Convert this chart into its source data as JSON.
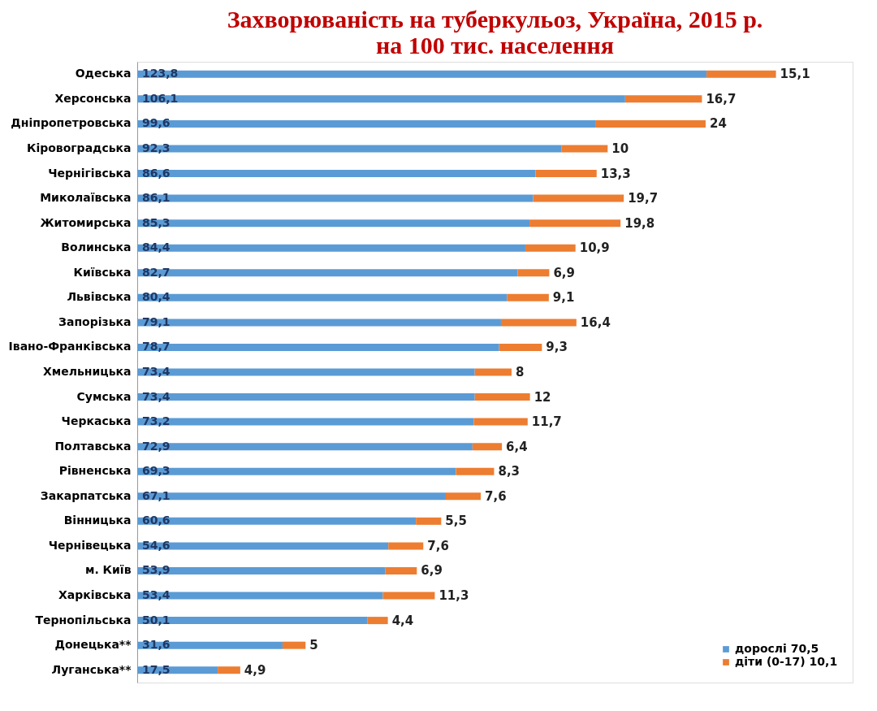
{
  "chart_data": {
    "type": "bar",
    "orientation": "horizontal",
    "stacked": true,
    "title": [
      "Захворюваність на туберкульоз, Україна, 2015 р.",
      "на 100 тис. населення"
    ],
    "categories": [
      "Одеська",
      "Херсонська",
      "Дніпропетровська",
      "Кіровоградська",
      "Чернігівська",
      "Миколаївська",
      "Житомирська",
      "Волинська",
      "Київська",
      "Львівська",
      "Запорізька",
      "Івано-Франківська",
      "Хмельницька",
      "Сумська",
      "Черкаська",
      "Полтавська",
      "Рівненська",
      "Закарпатська",
      "Вінницька",
      "Чернівецька",
      "м. Київ",
      "Харківська",
      "Тернопільська",
      "Донецька**",
      "Луганська**"
    ],
    "series": [
      {
        "name": "дорослі 70,5",
        "color": "#5b9bd5",
        "values": [
          123.8,
          106.1,
          99.6,
          92.3,
          86.6,
          86.1,
          85.3,
          84.4,
          82.7,
          80.4,
          79.1,
          78.7,
          73.4,
          73.4,
          73.2,
          72.9,
          69.3,
          67.1,
          60.6,
          54.6,
          53.9,
          53.4,
          50.1,
          31.6,
          17.5
        ],
        "value_labels": [
          "123,8",
          "106,1",
          "99,6",
          "92,3",
          "86,6",
          "86,1",
          "85,3",
          "84,4",
          "82,7",
          "80,4",
          "79,1",
          "78,7",
          "73,4",
          "73,4",
          "73,2",
          "72,9",
          "69,3",
          "67,1",
          "60,6",
          "54,6",
          "53,9",
          "53,4",
          "50,1",
          "31,6",
          "17,5"
        ]
      },
      {
        "name": "діти (0-17) 10,1",
        "color": "#ed7d31",
        "values": [
          15.1,
          16.7,
          24,
          10,
          13.3,
          19.7,
          19.8,
          10.9,
          6.9,
          9.1,
          16.4,
          9.3,
          8,
          12,
          11.7,
          6.4,
          8.3,
          7.6,
          5.5,
          7.6,
          6.9,
          11.3,
          4.4,
          5,
          4.9
        ],
        "value_labels": [
          "15,1",
          "16,7",
          "24",
          "10",
          "13,3",
          "19,7",
          "19,8",
          "10,9",
          "6,9",
          "9,1",
          "16,4",
          "9,3",
          "8",
          "12",
          "11,7",
          "6,4",
          "8,3",
          "7,6",
          "5,5",
          "7,6",
          "6,9",
          "11,3",
          "4,4",
          "5",
          "4,9"
        ]
      }
    ],
    "legend": "bottom right",
    "tick_labels": "y"
  }
}
